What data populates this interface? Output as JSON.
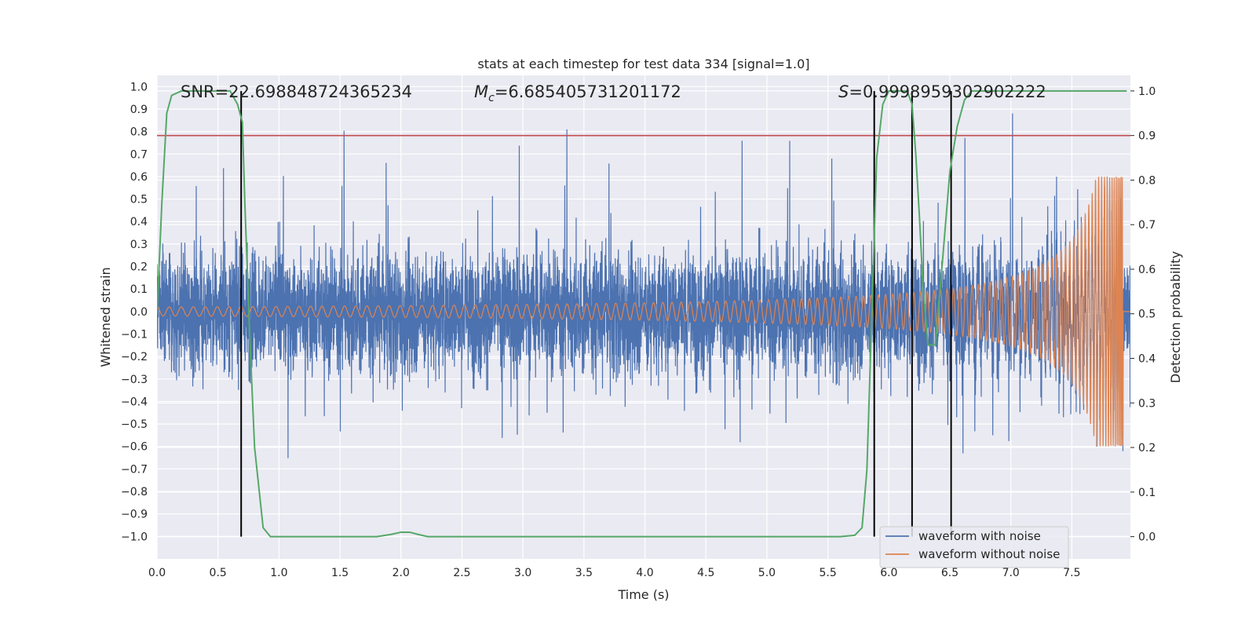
{
  "chart_data": {
    "type": "line",
    "title": "stats at each timestep for test data 334 [signal=1.0]",
    "xlabel": "Time (s)",
    "ylabel": "Whitened strain",
    "y2label": "Detection probability",
    "xlim": [
      0.0,
      7.98
    ],
    "ylim": [
      -1.1,
      1.05
    ],
    "y2lim": [
      -0.05,
      1.035
    ],
    "xticks": [
      0.0,
      0.5,
      1.0,
      1.5,
      2.0,
      2.5,
      3.0,
      3.5,
      4.0,
      4.5,
      5.0,
      5.5,
      6.0,
      6.5,
      7.0,
      7.5
    ],
    "xtick_labels": [
      "0.0",
      "0.5",
      "1.0",
      "1.5",
      "2.0",
      "2.5",
      "3.0",
      "3.5",
      "4.0",
      "4.5",
      "5.0",
      "5.5",
      "6.0",
      "6.5",
      "7.0",
      "7.5"
    ],
    "yticks": [
      1.0,
      0.9,
      0.8,
      0.7,
      0.6,
      0.5,
      0.4,
      0.3,
      0.2,
      0.1,
      0.0,
      -0.1,
      -0.2,
      -0.3,
      -0.4,
      -0.5,
      -0.6,
      -0.7,
      -0.8,
      -0.9,
      -1.0
    ],
    "ytick_labels": [
      "1.0",
      "0.9",
      "0.8",
      "0.7",
      "0.6",
      "0.5",
      "0.4",
      "0.3",
      "0.2",
      "0.1",
      "0.0",
      "−0.1",
      "−0.2",
      "−0.3",
      "−0.4",
      "−0.5",
      "−0.6",
      "−0.7",
      "−0.8",
      "−0.9",
      "−1.0"
    ],
    "y2ticks": [
      1.0,
      0.9,
      0.8,
      0.7,
      0.6,
      0.5,
      0.4,
      0.3,
      0.2,
      0.1,
      0.0
    ],
    "y2tick_labels": [
      "1.0",
      "0.9",
      "0.8",
      "0.7",
      "0.6",
      "0.5",
      "0.4",
      "0.3",
      "0.2",
      "0.1",
      "0.0"
    ],
    "annotations": {
      "snr": "SNR=22.698848724365234",
      "mc_symbol": "M",
      "mc_sub": "c",
      "mc_value": "=6.685405731201172",
      "s_symbol": "S",
      "s_value": "=0.9998959302902222"
    },
    "threshold": {
      "axis": "y2",
      "value": 0.9,
      "color": "#c44e52"
    },
    "vertical_lines": [
      0.69,
      5.88,
      6.19,
      6.51
    ],
    "series": [
      {
        "name": "waveform with noise",
        "color": "#4c72b0",
        "description": "whitened strain with gaussian noise, roughly ±0.3 envelope with spikes to ±0.8"
      },
      {
        "name": "waveform without noise",
        "color": "#dd8452",
        "description": "chirp signal, amplitude ≈0.02 rising to ≈0.6 at merger near t=7.92",
        "amplitude_start": 0.02,
        "amplitude_peak": 0.6,
        "merger_time": 7.92
      },
      {
        "name": "detection probability",
        "axis": "y2",
        "color": "#55a868",
        "x": [
          0.0,
          0.04,
          0.08,
          0.12,
          0.2,
          0.35,
          0.5,
          0.6,
          0.66,
          0.7,
          0.72,
          0.76,
          0.8,
          0.87,
          0.93,
          1.0,
          1.2,
          1.5,
          1.8,
          1.92,
          2.0,
          2.07,
          2.14,
          2.22,
          2.4,
          3.0,
          4.0,
          5.0,
          5.6,
          5.72,
          5.78,
          5.82,
          5.86,
          5.9,
          5.95,
          6.0,
          6.15,
          6.19,
          6.22,
          6.25,
          6.28,
          6.32,
          6.38,
          6.44,
          6.5,
          6.56,
          6.62,
          6.68,
          6.8,
          7.0,
          7.5,
          7.95
        ],
        "y": [
          0.5,
          0.75,
          0.95,
          0.99,
          1.0,
          1.0,
          1.0,
          1.0,
          0.97,
          0.93,
          0.75,
          0.45,
          0.2,
          0.02,
          0.0,
          0.0,
          0.0,
          0.0,
          0.0,
          0.005,
          0.01,
          0.01,
          0.005,
          0.0,
          0.0,
          0.0,
          0.0,
          0.0,
          0.0,
          0.003,
          0.02,
          0.15,
          0.5,
          0.85,
          0.97,
          1.0,
          1.0,
          0.97,
          0.86,
          0.72,
          0.56,
          0.43,
          0.43,
          0.62,
          0.82,
          0.92,
          0.98,
          1.0,
          1.0,
          1.0,
          1.0,
          1.0
        ]
      }
    ],
    "legend": {
      "position": "bottom-right",
      "entries": [
        "waveform with noise",
        "waveform without noise"
      ]
    }
  }
}
